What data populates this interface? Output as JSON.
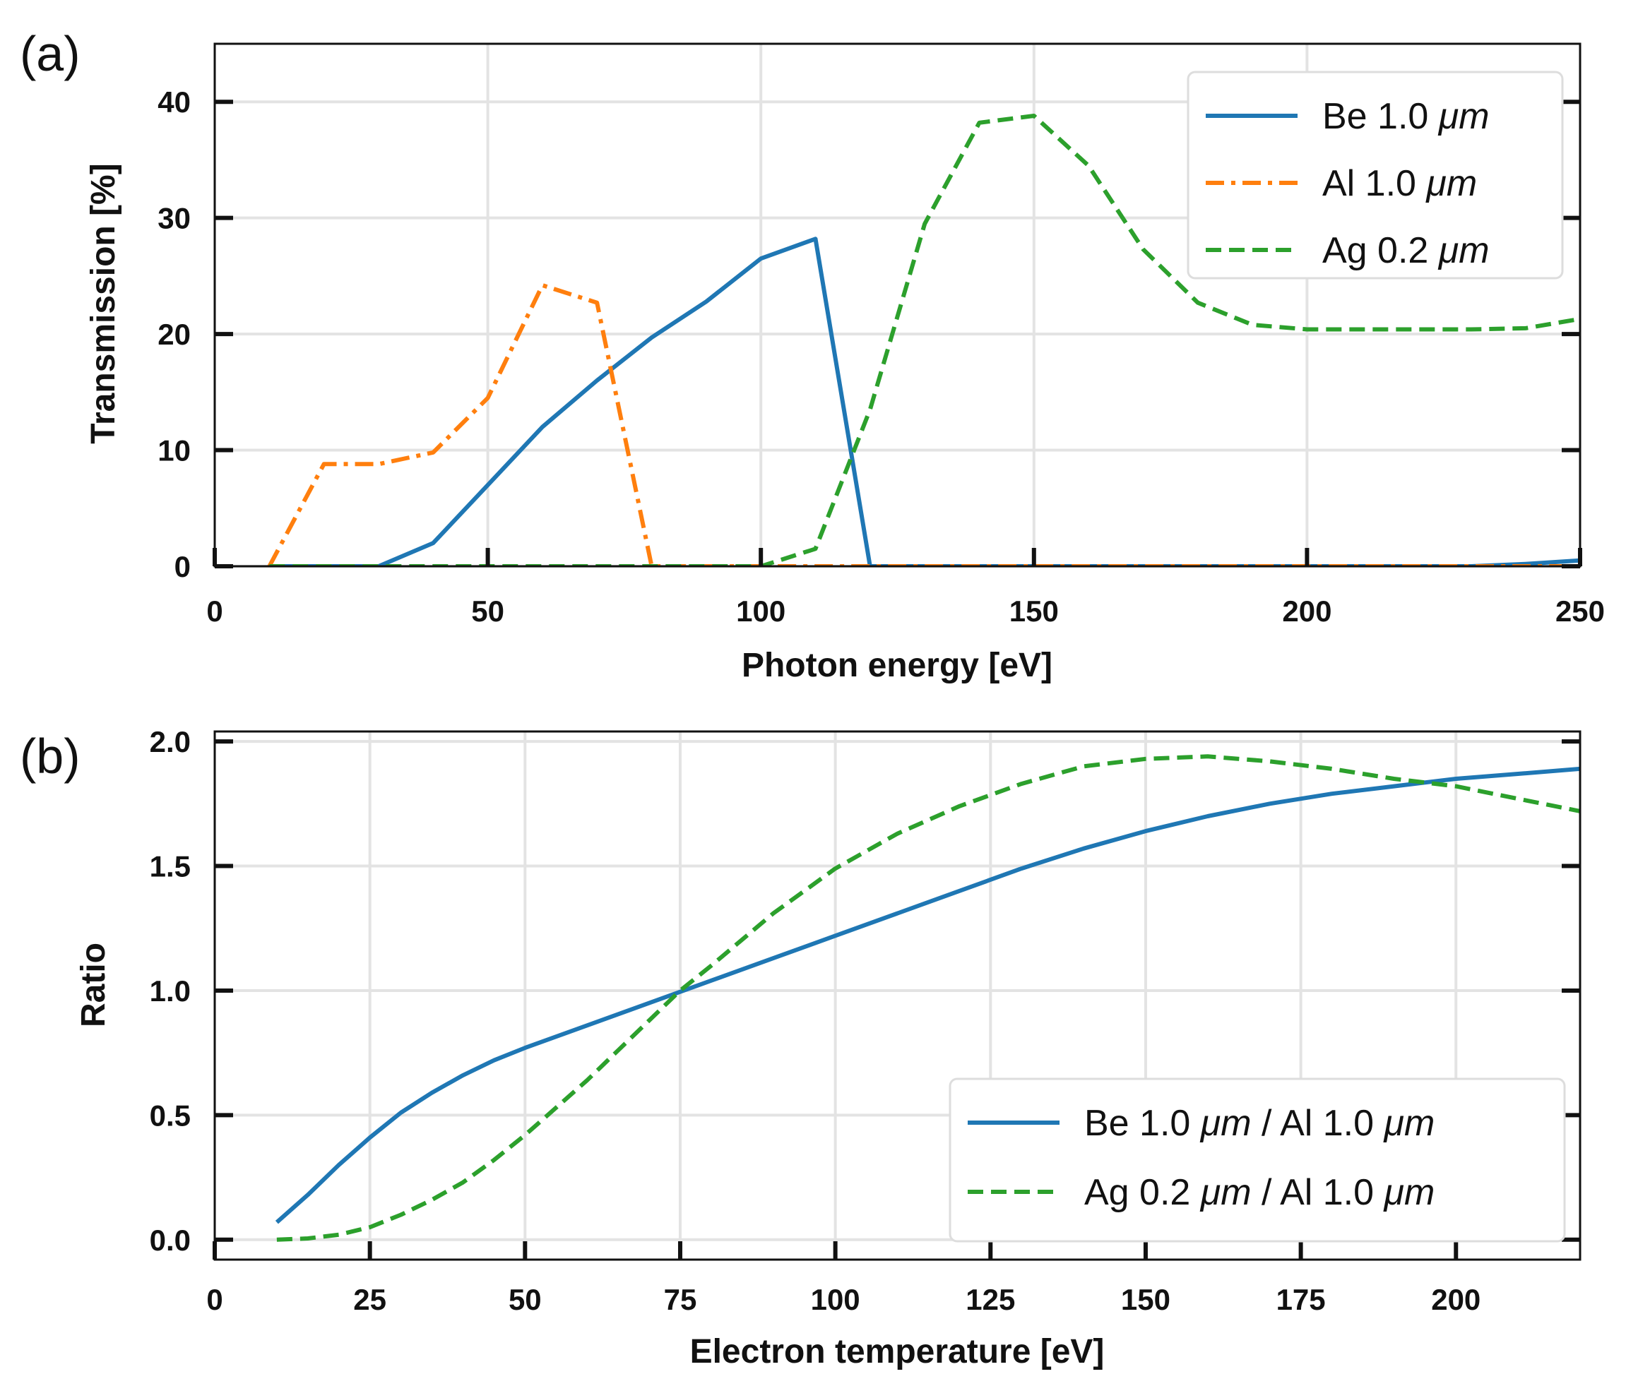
{
  "chart_data": [
    {
      "type": "line",
      "panel_label": "(a)",
      "title": "",
      "xlabel": "Photon energy [eV]",
      "ylabel": "Transmission [%]",
      "xlim": [
        0,
        250
      ],
      "ylim": [
        0,
        45
      ],
      "xticks": [
        0,
        50,
        100,
        150,
        200,
        250
      ],
      "xtick_labels": [
        "0",
        "50",
        "100",
        "150",
        "200",
        "250"
      ],
      "yticks": [
        0,
        10,
        20,
        30,
        40
      ],
      "ytick_labels": [
        "0",
        "10",
        "20",
        "30",
        "40"
      ],
      "grid": true,
      "legend_position": "top-right",
      "series": [
        {
          "name": "Be 1.0 μm",
          "label_prefix": "Be 1.0 ",
          "label_unit": "μm",
          "label_suffix": "",
          "color": "#1f77b4",
          "style": "solid",
          "x": [
            10,
            20,
            30,
            40,
            50,
            60,
            70,
            80,
            90,
            100,
            110,
            120,
            130,
            140,
            150,
            160,
            170,
            180,
            190,
            200,
            210,
            220,
            230,
            240,
            250
          ],
          "y": [
            0,
            0,
            0,
            2,
            7,
            12,
            16,
            19.7,
            22.8,
            26.5,
            28.2,
            0,
            0,
            0,
            0,
            0,
            0,
            0,
            0,
            0,
            0,
            0,
            0,
            0.2,
            0.5
          ]
        },
        {
          "name": "Al 1.0 μm",
          "label_prefix": "Al 1.0 ",
          "label_unit": "μm",
          "label_suffix": "",
          "color": "#ff7f0e",
          "style": "dashdot",
          "x": [
            10,
            20,
            30,
            40,
            50,
            60,
            70,
            80,
            90,
            100,
            110,
            120,
            130,
            140,
            150,
            160,
            170,
            180,
            190,
            200,
            210,
            220,
            230,
            240,
            250
          ],
          "y": [
            0,
            8.8,
            8.8,
            9.8,
            14.5,
            24.2,
            22.7,
            0,
            0,
            0,
            0,
            0,
            0,
            0,
            0,
            0,
            0,
            0,
            0,
            0,
            0,
            0,
            0,
            0,
            0
          ]
        },
        {
          "name": "Ag 0.2 μm",
          "label_prefix": "Ag 0.2 ",
          "label_unit": "μm",
          "label_suffix": "",
          "color": "#2ca02c",
          "style": "dashed",
          "x": [
            10,
            20,
            30,
            40,
            50,
            60,
            70,
            80,
            90,
            100,
            110,
            120,
            130,
            140,
            150,
            160,
            170,
            180,
            190,
            200,
            210,
            220,
            230,
            240,
            250
          ],
          "y": [
            0,
            0,
            0,
            0,
            0,
            0,
            0,
            0,
            0,
            0,
            1.5,
            13.5,
            29.5,
            38.2,
            38.8,
            34.5,
            27.3,
            22.7,
            20.8,
            20.4,
            20.4,
            20.4,
            20.4,
            20.5,
            21.3
          ]
        }
      ]
    },
    {
      "type": "line",
      "panel_label": "(b)",
      "title": "",
      "xlabel": "Electron temperature [eV]",
      "ylabel": "Ratio",
      "xlim": [
        0,
        220
      ],
      "ylim": [
        -0.08,
        2.04
      ],
      "xticks": [
        0,
        25,
        50,
        75,
        100,
        125,
        150,
        175,
        200
      ],
      "xtick_labels": [
        "0",
        "25",
        "50",
        "75",
        "100",
        "125",
        "150",
        "175",
        "200"
      ],
      "yticks": [
        0,
        0.5,
        1,
        1.5,
        2
      ],
      "ytick_labels": [
        "0.0",
        "0.5",
        "1.0",
        "1.5",
        "2.0"
      ],
      "grid": true,
      "legend_position": "bottom-right",
      "series": [
        {
          "name": "Be 1.0 μm / Al 1.0 μm",
          "label_prefix": "Be 1.0 ",
          "label_unit": "μm",
          "label_suffix": " / Al 1.0 μm",
          "color": "#1f77b4",
          "style": "solid",
          "x": [
            10,
            15,
            20,
            25,
            30,
            35,
            40,
            45,
            50,
            60,
            70,
            80,
            90,
            100,
            110,
            120,
            130,
            140,
            150,
            160,
            170,
            180,
            190,
            200,
            210,
            220
          ],
          "y": [
            0.07,
            0.18,
            0.3,
            0.41,
            0.51,
            0.59,
            0.66,
            0.72,
            0.77,
            0.86,
            0.95,
            1.04,
            1.13,
            1.22,
            1.31,
            1.4,
            1.49,
            1.57,
            1.64,
            1.7,
            1.75,
            1.79,
            1.82,
            1.85,
            1.87,
            1.89
          ]
        },
        {
          "name": "Ag 0.2 μm / Al 1.0 μm",
          "label_prefix": "Ag 0.2 ",
          "label_unit": "μm",
          "label_suffix": " / Al 1.0 μm",
          "color": "#2ca02c",
          "style": "dashed",
          "x": [
            10,
            15,
            20,
            25,
            30,
            35,
            40,
            45,
            50,
            55,
            60,
            65,
            70,
            75,
            80,
            90,
            100,
            110,
            120,
            130,
            140,
            150,
            160,
            170,
            180,
            190,
            200,
            210,
            220
          ],
          "y": [
            0,
            0.005,
            0.02,
            0.05,
            0.1,
            0.16,
            0.23,
            0.32,
            0.42,
            0.53,
            0.64,
            0.76,
            0.88,
            1.0,
            1.1,
            1.31,
            1.49,
            1.63,
            1.74,
            1.83,
            1.9,
            1.93,
            1.94,
            1.92,
            1.89,
            1.85,
            1.82,
            1.77,
            1.72
          ]
        }
      ]
    }
  ]
}
